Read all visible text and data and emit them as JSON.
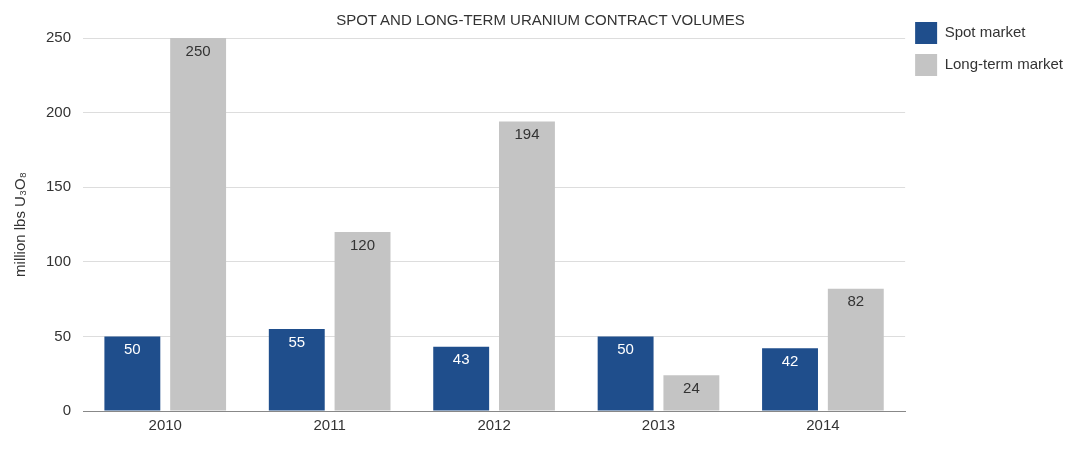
{
  "chart_data": {
    "type": "bar",
    "title": "SPOT AND LONG-TERM URANIUM CONTRACT VOLUMES",
    "ylabel": "million lbs U₃O₈",
    "categories": [
      "2010",
      "2011",
      "2012",
      "2013",
      "2014"
    ],
    "series": [
      {
        "name": "Spot market",
        "color": "#1f4e8c",
        "values": [
          50,
          55,
          43,
          50,
          42
        ]
      },
      {
        "name": "Long-term market",
        "color": "#c4c4c4",
        "values": [
          250,
          120,
          194,
          24,
          82
        ]
      }
    ],
    "ylim": [
      0,
      250
    ],
    "yticks": [
      0,
      50,
      100,
      150,
      200,
      250
    ],
    "grid": "y",
    "legend": "top right",
    "data_labels": true
  }
}
